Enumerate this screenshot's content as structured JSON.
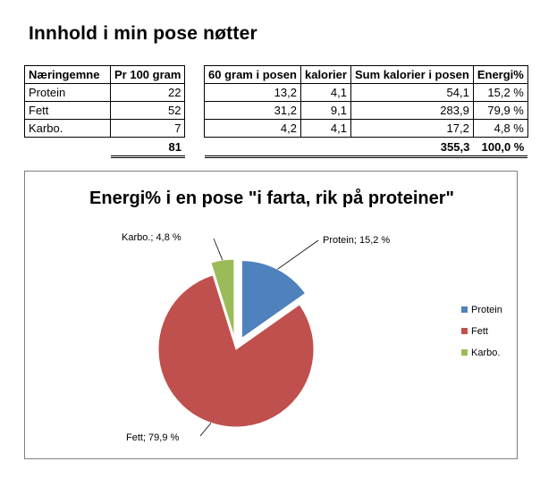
{
  "sheet": {
    "title": "Innhold i min pose nøtter"
  },
  "table_left": {
    "headers": [
      "Næringemne",
      "Pr 100 gram"
    ],
    "rows": [
      {
        "name": "Protein",
        "per100": "22"
      },
      {
        "name": "Fett",
        "per100": "52"
      },
      {
        "name": "Karbo.",
        "per100": "7"
      }
    ],
    "total": "81"
  },
  "table_right": {
    "headers": [
      "60 gram i posen",
      "kalorier",
      "Sum kalorier i posen",
      "Energi%"
    ],
    "rows": [
      {
        "grams": "13,2",
        "kcal": "4,1",
        "sum": "54,1",
        "pct": "15,2 %"
      },
      {
        "grams": "31,2",
        "kcal": "9,1",
        "sum": "283,9",
        "pct": "79,9 %"
      },
      {
        "grams": "4,2",
        "kcal": "4,1",
        "sum": "17,2",
        "pct": "4,8 %"
      }
    ],
    "total_sum": "355,3",
    "total_pct": "100,0 %"
  },
  "colors": {
    "protein": "#4f81bd",
    "fett": "#c0504d",
    "karbo": "#9bbb59",
    "frame": "#7f7f7f"
  },
  "chart_data": {
    "type": "pie",
    "title": "Energi% i en pose \"i farta, rik på proteiner\"",
    "categories": [
      "Protein",
      "Fett",
      "Karbo."
    ],
    "values": [
      15.2,
      79.9,
      4.8
    ],
    "data_labels": [
      "Protein; 15,2 %",
      "Fett;  79,9 %",
      "Karbo.; 4,8 %"
    ],
    "exploded": true,
    "legend": {
      "position": "right",
      "entries": [
        "Protein",
        "Fett",
        "Karbo."
      ]
    }
  }
}
